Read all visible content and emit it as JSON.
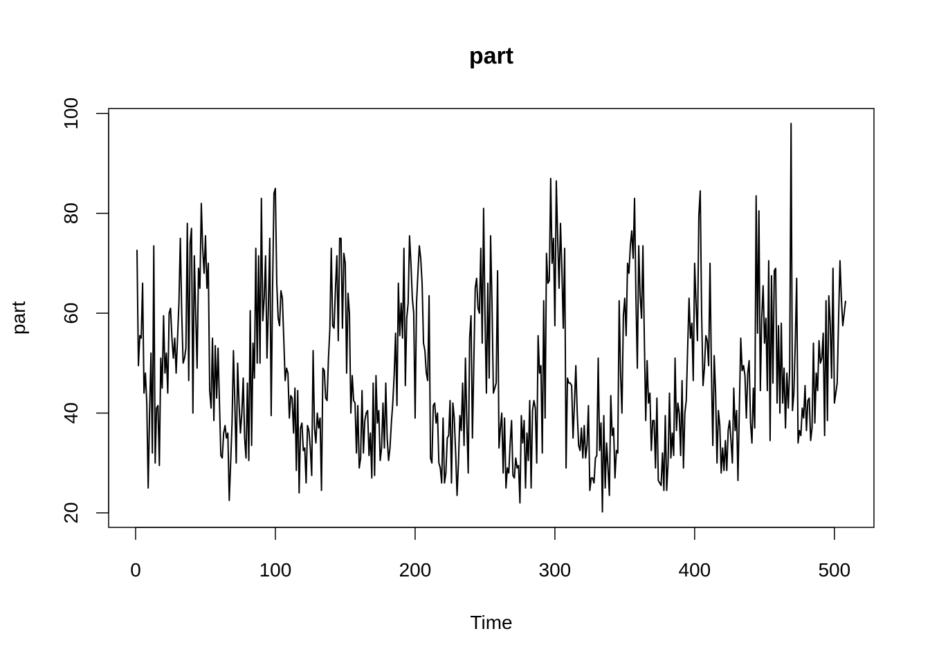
{
  "chart_data": {
    "type": "line",
    "title": "part",
    "xlabel": "Time",
    "ylabel": "part",
    "color": "#000000",
    "xlim": [
      -19.3,
      528.3
    ],
    "ylim": [
      17.1,
      101.0
    ],
    "xticks": [
      0,
      100,
      200,
      300,
      400,
      500
    ],
    "yticks": [
      20,
      40,
      60,
      80,
      100
    ],
    "x": [
      1,
      2,
      3,
      4,
      5,
      6,
      7,
      8,
      9,
      10,
      11,
      12,
      13,
      14,
      15,
      16,
      17,
      18,
      19,
      20,
      21,
      22,
      23,
      24,
      25,
      26,
      27,
      28,
      29,
      30,
      31,
      32,
      33,
      34,
      35,
      36,
      37,
      38,
      39,
      40,
      41,
      42,
      43,
      44,
      45,
      46,
      47,
      48,
      49,
      50,
      51,
      52,
      53,
      54,
      55,
      56,
      57,
      58,
      59,
      60,
      61,
      62,
      63,
      64,
      65,
      66,
      67,
      68,
      69,
      70,
      71,
      72,
      73,
      74,
      75,
      76,
      77,
      78,
      79,
      80,
      81,
      82,
      83,
      84,
      85,
      86,
      87,
      88,
      89,
      90,
      91,
      92,
      93,
      94,
      95,
      96,
      97,
      98,
      99,
      100,
      101,
      102,
      103,
      104,
      105,
      106,
      107,
      108,
      109,
      110,
      111,
      112,
      113,
      114,
      115,
      116,
      117,
      118,
      119,
      120,
      121,
      122,
      123,
      124,
      125,
      126,
      127,
      128,
      129,
      130,
      131,
      132,
      133,
      134,
      135,
      136,
      137,
      138,
      139,
      140,
      141,
      142,
      143,
      144,
      145,
      146,
      147,
      148,
      149,
      150,
      151,
      152,
      153,
      154,
      155,
      156,
      157,
      158,
      159,
      160,
      161,
      162,
      163,
      164,
      165,
      166,
      167,
      168,
      169,
      170,
      171,
      172,
      173,
      174,
      175,
      176,
      177,
      178,
      179,
      180,
      181,
      182,
      183,
      184,
      185,
      186,
      187,
      188,
      189,
      190,
      191,
      192,
      193,
      194,
      195,
      196,
      197,
      198,
      199,
      200,
      201,
      202,
      203,
      204,
      205,
      206,
      207,
      208,
      209,
      210,
      211,
      212,
      213,
      214,
      215,
      216,
      217,
      218,
      219,
      220,
      221,
      222,
      223,
      224,
      225,
      226,
      227,
      228,
      229,
      230,
      231,
      232,
      233,
      234,
      235,
      236,
      237,
      238,
      239,
      240,
      241,
      242,
      243,
      244,
      245,
      246,
      247,
      248,
      249,
      250,
      251,
      252,
      253,
      254,
      255,
      256,
      257,
      258,
      259,
      260,
      261,
      262,
      263,
      264,
      265,
      266,
      267,
      268,
      269,
      270,
      271,
      272,
      273,
      274,
      275,
      276,
      277,
      278,
      279,
      280,
      281,
      282,
      283,
      284,
      285,
      286,
      287,
      288,
      289,
      290,
      291,
      292,
      293,
      294,
      295,
      296,
      297,
      298,
      299,
      300,
      301,
      302,
      303,
      304,
      305,
      306,
      307,
      308,
      309,
      310,
      311,
      312,
      313,
      314,
      315,
      316,
      317,
      318,
      319,
      320,
      321,
      322,
      323,
      324,
      325,
      326,
      327,
      328,
      329,
      330,
      331,
      332,
      333,
      334,
      335,
      336,
      337,
      338,
      339,
      340,
      341,
      342,
      343,
      344,
      345,
      346,
      347,
      348,
      349,
      350,
      351,
      352,
      353,
      354,
      355,
      356,
      357,
      358,
      359,
      360,
      361,
      362,
      363,
      364,
      365,
      366,
      367,
      368,
      369,
      370,
      371,
      372,
      373,
      374,
      375,
      376,
      377,
      378,
      379,
      380,
      381,
      382,
      383,
      384,
      385,
      386,
      387,
      388,
      389,
      390,
      391,
      392,
      393,
      394,
      395,
      396,
      397,
      398,
      399,
      400,
      401,
      402,
      403,
      404,
      405,
      406,
      407,
      408,
      409,
      410,
      411,
      412,
      413,
      414,
      415,
      416,
      417,
      418,
      419,
      420,
      421,
      422,
      423,
      424,
      425,
      426,
      427,
      428,
      429,
      430,
      431,
      432,
      433,
      434,
      435,
      436,
      437,
      438,
      439,
      440,
      441,
      442,
      443,
      444,
      445,
      446,
      447,
      448,
      449,
      450,
      451,
      452,
      453,
      454,
      455,
      456,
      457,
      458,
      459,
      460,
      461,
      462,
      463,
      464,
      465,
      466,
      467,
      468,
      469,
      470,
      471,
      472,
      473,
      474,
      475,
      476,
      477,
      478,
      479,
      480,
      481,
      482,
      483,
      484,
      485,
      486,
      487,
      488,
      489,
      490,
      491,
      492,
      493,
      494,
      495,
      496,
      497,
      498,
      499,
      500,
      501,
      502,
      503,
      504,
      505,
      506,
      507,
      508
    ],
    "values": [
      72.7,
      49.5,
      55.5,
      55,
      66,
      44,
      48,
      42,
      25,
      40,
      52,
      32,
      73.5,
      30,
      41,
      41.5,
      29.5,
      51,
      45,
      59.5,
      48,
      52,
      44,
      60,
      61,
      55,
      51,
      55,
      48,
      55,
      62,
      75,
      60,
      50,
      51,
      53,
      78,
      46.5,
      74,
      77,
      40,
      71.5,
      60,
      49,
      69,
      65,
      82,
      73,
      68,
      75.5,
      65,
      70,
      44.5,
      41,
      55,
      38.5,
      53.5,
      43,
      53,
      42,
      31.5,
      31,
      36,
      37.5,
      35,
      36,
      22.5,
      30,
      38,
      52.5,
      42,
      30,
      50,
      42,
      36,
      40,
      47,
      35,
      31,
      46,
      30.5,
      60.5,
      33.5,
      54,
      47,
      73,
      50,
      71.5,
      50,
      83,
      58.5,
      63,
      71.5,
      51,
      61,
      75,
      39.5,
      65,
      84,
      85,
      66,
      59,
      57.5,
      64.5,
      63,
      55,
      46.5,
      49,
      48,
      39,
      43.5,
      43,
      36,
      45,
      28.5,
      44.5,
      24,
      37,
      38,
      32.5,
      33,
      26,
      37.5,
      36.5,
      33,
      27.5,
      52.5,
      37,
      34,
      40,
      37,
      39,
      24.5,
      49,
      48.5,
      43,
      42.5,
      51,
      57,
      73,
      57.5,
      57,
      65,
      71.5,
      54.5,
      75,
      75,
      57,
      72,
      70,
      48,
      64,
      60,
      40,
      47.5,
      42.5,
      42,
      32,
      41.5,
      29,
      31,
      44.5,
      32,
      38.5,
      40,
      40.5,
      31.5,
      36,
      27,
      46,
      27.5,
      47.5,
      38,
      40.5,
      30.5,
      33,
      42,
      33,
      46,
      35,
      30.5,
      33,
      38,
      42,
      47.5,
      56,
      41.5,
      66,
      55.5,
      62,
      55,
      73,
      45.5,
      59,
      62,
      75.5,
      70,
      63,
      60,
      39,
      62,
      68,
      73.5,
      71,
      66,
      54,
      52.5,
      48,
      46.5,
      63.5,
      31,
      30,
      41.5,
      42,
      38,
      40,
      30,
      29,
      26,
      39,
      26,
      28,
      35,
      35.5,
      42.5,
      26,
      42,
      39,
      32,
      23.5,
      30,
      39.5,
      36.5,
      46,
      33.5,
      51,
      38,
      28,
      55,
      59.5,
      35,
      50,
      65,
      67,
      61,
      60,
      73,
      54,
      81,
      59.5,
      44,
      66,
      47,
      75.5,
      62,
      44,
      45,
      46,
      68.5,
      33,
      37,
      40,
      28,
      39,
      25,
      29,
      28,
      34,
      38.5,
      27.5,
      27,
      31,
      29,
      29.5,
      22,
      39.5,
      34,
      38.5,
      25,
      36,
      30.5,
      42.5,
      25,
      40.5,
      42.5,
      41,
      30,
      55.5,
      48,
      49.5,
      32,
      62.5,
      39,
      72,
      66,
      66.5,
      87,
      70,
      75,
      57.5,
      86.5,
      75,
      65,
      78,
      69,
      57,
      73,
      29,
      47,
      46,
      46,
      45.5,
      35,
      42,
      49.5,
      40,
      33.5,
      32.5,
      37,
      31,
      37.5,
      31,
      33.5,
      41.5,
      24.5,
      27,
      27,
      26,
      31,
      31.5,
      51,
      32.5,
      38,
      20.2,
      39.5,
      25,
      34,
      29,
      23.5,
      43.5,
      35.5,
      37,
      27,
      32.5,
      32,
      62.5,
      48,
      40,
      59.5,
      63,
      55.5,
      70,
      68,
      73.5,
      76.5,
      71,
      83,
      63,
      49,
      73.5,
      63.5,
      59,
      73.5,
      55,
      38.5,
      50.5,
      42,
      44,
      32.5,
      38.5,
      38.5,
      29,
      43,
      26.5,
      26,
      25.5,
      32,
      24.5,
      39.5,
      24.5,
      30,
      44,
      31,
      36,
      31.5,
      51,
      36.5,
      42,
      40,
      31.5,
      46.5,
      29,
      40,
      42.5,
      53,
      63,
      55,
      58,
      46.5,
      70,
      62,
      54.5,
      79.5,
      84.5,
      60,
      45.5,
      49,
      55.5,
      54.5,
      49.5,
      70,
      48.5,
      33.5,
      51.5,
      44,
      30,
      40.5,
      37.5,
      28,
      33,
      28.5,
      34.5,
      28.5,
      36.5,
      38.5,
      34.5,
      30,
      45,
      36.5,
      40.5,
      26.5,
      41,
      55,
      48.5,
      49.5,
      47.5,
      39,
      48,
      50.5,
      38,
      34,
      45,
      37,
      83.5,
      56,
      80.5,
      44.5,
      59,
      65.5,
      54,
      59,
      44.5,
      70.5,
      34.5,
      67.5,
      46,
      68.5,
      69,
      42,
      57.5,
      40,
      58,
      42,
      49,
      37,
      48,
      41,
      49,
      98,
      40.5,
      44,
      54,
      67,
      34,
      36.5,
      35.5,
      41,
      39,
      45.5,
      36.5,
      42.5,
      43,
      34.5,
      37,
      54,
      38,
      48,
      44.5,
      54.5,
      50,
      51,
      56,
      35.5,
      62.5,
      38.5,
      63.5,
      58,
      47,
      69,
      42,
      44,
      46,
      59,
      70.5,
      63,
      57.5,
      60,
      62.5
    ]
  }
}
